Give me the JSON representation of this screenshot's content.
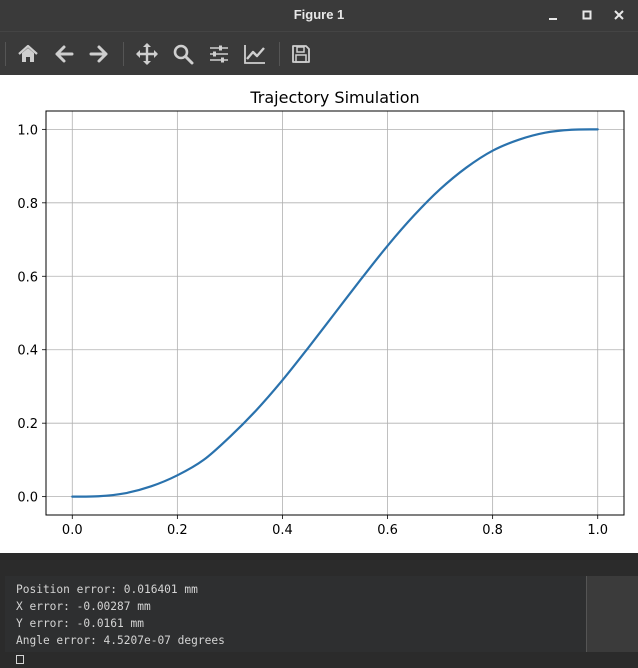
{
  "window": {
    "title": "Figure 1"
  },
  "toolbar": {
    "tools": [
      {
        "name": "home-icon",
        "label": "Home"
      },
      {
        "name": "back-icon",
        "label": "Back"
      },
      {
        "name": "forward-icon",
        "label": "Forward"
      },
      {
        "name": "pan-icon",
        "label": "Pan"
      },
      {
        "name": "zoom-icon",
        "label": "Zoom"
      },
      {
        "name": "subplots-icon",
        "label": "Configure subplots"
      },
      {
        "name": "axes-icon",
        "label": "Edit axis"
      },
      {
        "name": "save-icon",
        "label": "Save"
      }
    ]
  },
  "chart_data": {
    "type": "line",
    "title": "Trajectory Simulation",
    "xlabel": "",
    "ylabel": "",
    "xlim": [
      -0.05,
      1.05
    ],
    "ylim": [
      -0.05,
      1.05
    ],
    "xticks": [
      "0.0",
      "0.2",
      "0.4",
      "0.6",
      "0.8",
      "1.0"
    ],
    "yticks": [
      "0.0",
      "0.2",
      "0.4",
      "0.6",
      "0.8",
      "1.0"
    ],
    "grid": true,
    "series": [
      {
        "color": "#2a72ad",
        "x": [
          0.0,
          0.05,
          0.1,
          0.15,
          0.2,
          0.25,
          0.3,
          0.35,
          0.4,
          0.45,
          0.5,
          0.55,
          0.6,
          0.65,
          0.7,
          0.75,
          0.8,
          0.85,
          0.9,
          0.95,
          1.0
        ],
        "y": [
          0.0,
          0.001,
          0.009,
          0.028,
          0.058,
          0.1,
          0.163,
          0.235,
          0.317,
          0.407,
          0.5,
          0.593,
          0.683,
          0.765,
          0.837,
          0.896,
          0.942,
          0.972,
          0.991,
          0.999,
          1.0
        ]
      }
    ]
  },
  "terminal": {
    "lines": [
      "Position error: 0.016401 mm",
      "X error: -0.00287 mm",
      "Y error: -0.0161 mm",
      "Angle error: 4.5207e-07 degrees"
    ]
  }
}
